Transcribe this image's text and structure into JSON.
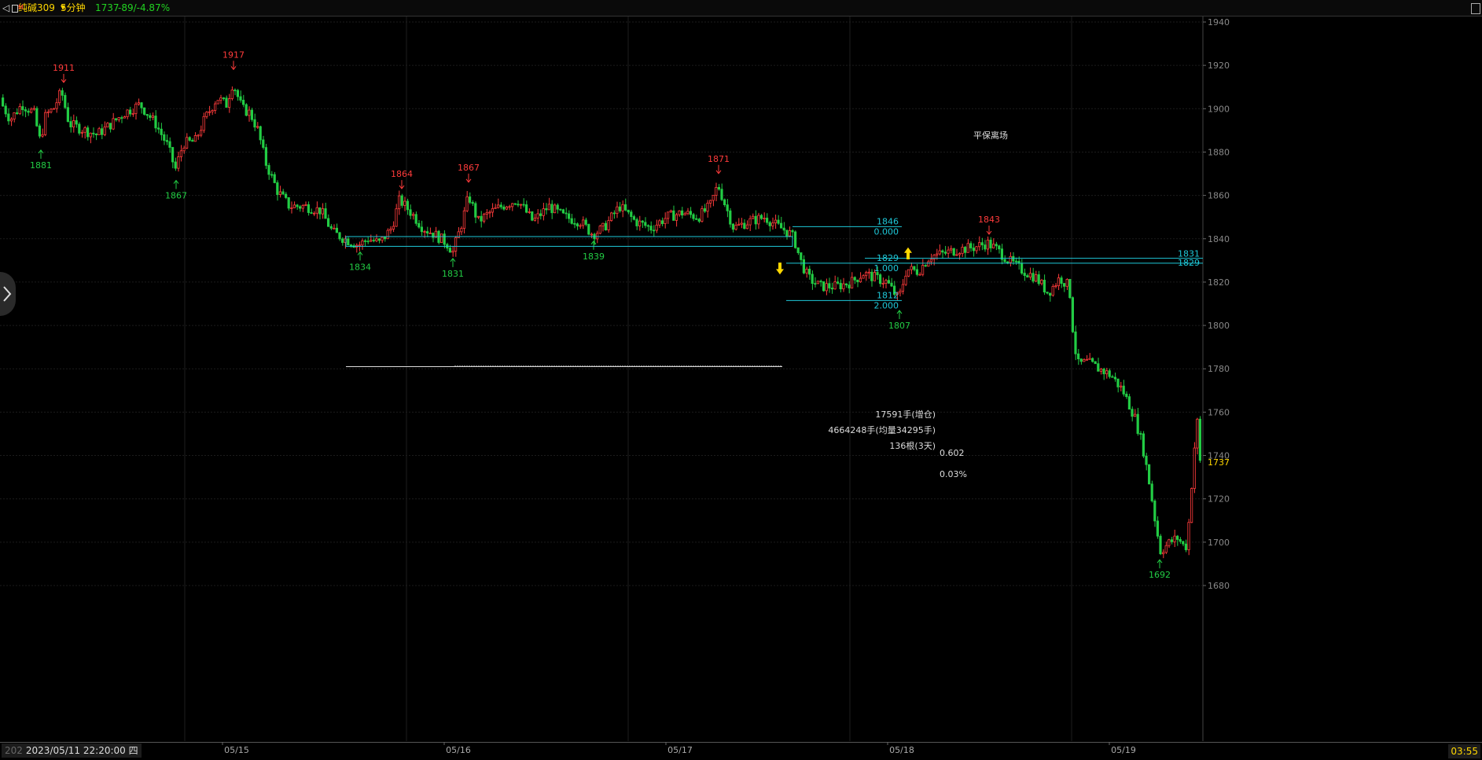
{
  "header": {
    "back_label": "◁",
    "symbol": "纯碱309",
    "symbol_mark": "M",
    "period": "5分钟",
    "last_price": "1737",
    "change": "-89/-4.87%"
  },
  "footer": {
    "prefix": "202",
    "cursor_time": "2023/05/11 22:20:00 四",
    "clock": "03:55"
  },
  "colors": {
    "up": "#ff3b3b",
    "down": "#22cc44",
    "line": "#1ec8d8",
    "text": "#dddddd",
    "price": "#ffd700"
  },
  "chart_data": {
    "type": "candlestick",
    "ylim": [
      1675,
      1943
    ],
    "yticks": [
      1680,
      1700,
      1720,
      1740,
      1760,
      1780,
      1800,
      1820,
      1840,
      1860,
      1880,
      1900,
      1920,
      1940
    ],
    "date_labels": [
      "05/15",
      "05/16",
      "05/17",
      "05/18",
      "05/19"
    ],
    "last_price": 1737,
    "price_path": [
      [
        0,
        1905
      ],
      [
        15,
        1895
      ],
      [
        30,
        1902
      ],
      [
        45,
        1898
      ],
      [
        53,
        1885
      ],
      [
        60,
        1897
      ],
      [
        70,
        1900
      ],
      [
        80,
        1908
      ],
      [
        90,
        1893
      ],
      [
        110,
        1890
      ],
      [
        125,
        1888
      ],
      [
        140,
        1892
      ],
      [
        160,
        1898
      ],
      [
        180,
        1902
      ],
      [
        200,
        1893
      ],
      [
        215,
        1883
      ],
      [
        225,
        1872
      ],
      [
        235,
        1884
      ],
      [
        250,
        1885
      ],
      [
        262,
        1895
      ],
      [
        278,
        1905
      ],
      [
        290,
        1902
      ],
      [
        298,
        1912
      ],
      [
        310,
        1900
      ],
      [
        320,
        1898
      ],
      [
        330,
        1890
      ],
      [
        340,
        1875
      ],
      [
        355,
        1862
      ],
      [
        370,
        1855
      ],
      [
        390,
        1855
      ],
      [
        410,
        1853
      ],
      [
        425,
        1843
      ],
      [
        440,
        1840
      ],
      [
        458,
        1837
      ],
      [
        470,
        1840
      ],
      [
        485,
        1838
      ],
      [
        500,
        1845
      ],
      [
        510,
        1858
      ],
      [
        525,
        1852
      ],
      [
        540,
        1845
      ],
      [
        555,
        1842
      ],
      [
        570,
        1838
      ],
      [
        578,
        1834
      ],
      [
        590,
        1848
      ],
      [
        598,
        1860
      ],
      [
        610,
        1848
      ],
      [
        625,
        1852
      ],
      [
        640,
        1855
      ],
      [
        660,
        1858
      ],
      [
        680,
        1848
      ],
      [
        700,
        1855
      ],
      [
        720,
        1850
      ],
      [
        740,
        1848
      ],
      [
        756,
        1842
      ],
      [
        770,
        1845
      ],
      [
        790,
        1855
      ],
      [
        810,
        1848
      ],
      [
        830,
        1845
      ],
      [
        850,
        1850
      ],
      [
        870,
        1852
      ],
      [
        890,
        1850
      ],
      [
        905,
        1855
      ],
      [
        915,
        1865
      ],
      [
        925,
        1855
      ],
      [
        935,
        1845
      ],
      [
        955,
        1848
      ],
      [
        975,
        1850
      ],
      [
        990,
        1846
      ],
      [
        1005,
        1843
      ],
      [
        1012,
        1840
      ],
      [
        1020,
        1830
      ],
      [
        1030,
        1822
      ],
      [
        1045,
        1818
      ],
      [
        1065,
        1818
      ],
      [
        1085,
        1820
      ],
      [
        1100,
        1824
      ],
      [
        1115,
        1822
      ],
      [
        1130,
        1820
      ],
      [
        1145,
        1812
      ],
      [
        1155,
        1826
      ],
      [
        1170,
        1825
      ],
      [
        1185,
        1832
      ],
      [
        1200,
        1833
      ],
      [
        1220,
        1835
      ],
      [
        1240,
        1836
      ],
      [
        1258,
        1838
      ],
      [
        1270,
        1835
      ],
      [
        1285,
        1830
      ],
      [
        1300,
        1826
      ],
      [
        1320,
        1822
      ],
      [
        1335,
        1815
      ],
      [
        1350,
        1822
      ],
      [
        1362,
        1818
      ],
      [
        1366,
        1800
      ],
      [
        1372,
        1782
      ],
      [
        1385,
        1783
      ],
      [
        1400,
        1780
      ],
      [
        1415,
        1777
      ],
      [
        1430,
        1770
      ],
      [
        1445,
        1758
      ],
      [
        1455,
        1745
      ],
      [
        1465,
        1725
      ],
      [
        1472,
        1708
      ],
      [
        1478,
        1696
      ],
      [
        1490,
        1700
      ],
      [
        1500,
        1702
      ],
      [
        1510,
        1697
      ],
      [
        1515,
        1712
      ],
      [
        1520,
        1740
      ],
      [
        1525,
        1756
      ],
      [
        1528,
        1737
      ]
    ],
    "peaks": [
      {
        "label": "1911",
        "x": 81,
        "y": 1911,
        "type": "high"
      },
      {
        "label": "1917",
        "x": 297,
        "y": 1917,
        "type": "high"
      },
      {
        "label": "1864",
        "x": 511,
        "y": 1862,
        "type": "high"
      },
      {
        "label": "1867",
        "x": 596,
        "y": 1865,
        "type": "high"
      },
      {
        "label": "1871",
        "x": 914,
        "y": 1869,
        "type": "high"
      },
      {
        "label": "1843",
        "x": 1258,
        "y": 1841,
        "type": "high"
      },
      {
        "label": "1881",
        "x": 52,
        "y": 1882,
        "type": "low"
      },
      {
        "label": "1867",
        "x": 224,
        "y": 1868,
        "type": "low"
      },
      {
        "label": "1834",
        "x": 458,
        "y": 1835,
        "type": "low"
      },
      {
        "label": "1831",
        "x": 576,
        "y": 1832,
        "type": "low"
      },
      {
        "label": "1839",
        "x": 755,
        "y": 1840,
        "type": "low"
      },
      {
        "label": "1807",
        "x": 1144,
        "y": 1808,
        "type": "low"
      },
      {
        "label": "1692",
        "x": 1475,
        "y": 1693,
        "type": "low"
      }
    ],
    "annotations": {
      "fib": [
        {
          "price": "1846",
          "ratio": "0.000"
        },
        {
          "price": "1829",
          "ratio": "1.000"
        },
        {
          "price": "1812",
          "ratio": "2.000"
        }
      ],
      "right_labels": [
        "1831",
        "1829"
      ],
      "exit_text": "平保离场",
      "volume_add": "17591手(增仓)",
      "volume_total": "4664248手(均量34295手)",
      "bars_count": "136根(3天)",
      "ratio_value": "0.602",
      "percent_value": "0.03%"
    }
  }
}
